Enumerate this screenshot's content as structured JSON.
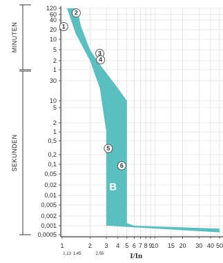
{
  "chart_data": {
    "type": "area",
    "xscale": "log",
    "yscale": "log",
    "xlabel": "I/In",
    "x_ticks": [
      "1",
      "2",
      "3",
      "4",
      "5",
      "6",
      "7",
      "8",
      "9",
      "10",
      "15",
      "20",
      "30",
      "40",
      "50"
    ],
    "x_sub_ticks": [
      "1,13",
      "1,45",
      "2,55"
    ],
    "y_groups": [
      {
        "name": "MINUTEN",
        "unit": "min",
        "ticks": [
          "120",
          "60",
          "40",
          "20",
          "10",
          "5",
          "2",
          "1"
        ]
      },
      {
        "name": "SEKUNDEN",
        "unit": "s",
        "ticks": [
          "30",
          "10",
          "5",
          "2",
          "1",
          "0,5",
          "0,2",
          "0,1",
          "0,05",
          "0,02",
          "0,01",
          "0,005",
          "0,002",
          "0,001",
          "0,0005"
        ]
      }
    ],
    "band_label": "B",
    "band_color": "#5bbfc0",
    "callouts": [
      "1",
      "2",
      "3",
      "4",
      "5",
      "6"
    ],
    "series": [
      {
        "name": "B",
        "upper_edge": [
          {
            "x": 1.45,
            "y_seconds": 7200
          },
          {
            "x": 1.6,
            "y_seconds": 1500
          },
          {
            "x": 2.0,
            "y_seconds": 300
          },
          {
            "x": 2.55,
            "y_seconds": 90
          },
          {
            "x": 4.0,
            "y_seconds": 20
          },
          {
            "x": 5.0,
            "y_seconds": 10
          },
          {
            "x": 5.0,
            "y_seconds": 0.0012
          },
          {
            "x": 6.0,
            "y_seconds": 0.001
          },
          {
            "x": 50,
            "y_seconds": 0.0008
          }
        ],
        "lower_edge": [
          {
            "x": 1.13,
            "y_seconds": 7200
          },
          {
            "x": 1.4,
            "y_seconds": 900
          },
          {
            "x": 2.0,
            "y_seconds": 120
          },
          {
            "x": 2.55,
            "y_seconds": 20
          },
          {
            "x": 3.0,
            "y_seconds": 1
          },
          {
            "x": 3.0,
            "y_seconds": 0.001
          },
          {
            "x": 50,
            "y_seconds": 0.0006
          }
        ]
      }
    ]
  }
}
